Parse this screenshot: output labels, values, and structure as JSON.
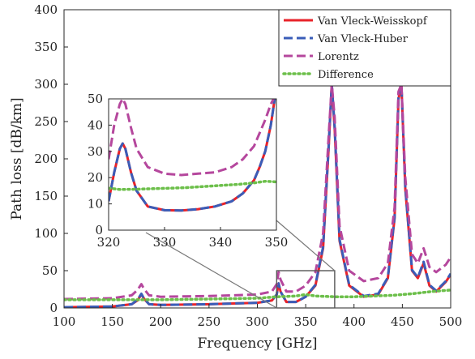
{
  "chart_data": {
    "type": "line",
    "xlabel": "Frequency [GHz]",
    "ylabel": "Path loss [dB/km]",
    "xlim": [
      100,
      500
    ],
    "ylim": [
      0,
      400
    ],
    "xticks": [
      100,
      150,
      200,
      250,
      300,
      350,
      400,
      450,
      500
    ],
    "yticks": [
      0,
      50,
      100,
      150,
      200,
      250,
      300,
      350,
      400
    ],
    "grid": false,
    "legend": {
      "position": "top-right",
      "entries": [
        "Van Vleck-Weisskopf",
        "Van Vleck-Huber",
        "Lorentz",
        "Difference"
      ]
    },
    "series": [
      {
        "name": "Van Vleck-Weisskopf",
        "color": "#e8232a",
        "style": "solid",
        "points": [
          [
            100,
            1
          ],
          [
            150,
            2
          ],
          [
            170,
            5
          ],
          [
            176,
            10
          ],
          [
            180,
            18
          ],
          [
            183,
            12
          ],
          [
            188,
            5
          ],
          [
            200,
            4
          ],
          [
            250,
            5
          ],
          [
            300,
            7
          ],
          [
            315,
            10
          ],
          [
            320,
            18
          ],
          [
            322,
            33
          ],
          [
            324,
            22
          ],
          [
            330,
            8
          ],
          [
            340,
            8
          ],
          [
            350,
            15
          ],
          [
            360,
            30
          ],
          [
            368,
            80
          ],
          [
            374,
            220
          ],
          [
            377,
            300
          ],
          [
            380,
            240
          ],
          [
            385,
            90
          ],
          [
            395,
            30
          ],
          [
            410,
            15
          ],
          [
            425,
            18
          ],
          [
            435,
            40
          ],
          [
            442,
            120
          ],
          [
            446,
            280
          ],
          [
            449,
            300
          ],
          [
            453,
            160
          ],
          [
            460,
            50
          ],
          [
            466,
            40
          ],
          [
            472,
            60
          ],
          [
            478,
            30
          ],
          [
            485,
            22
          ],
          [
            495,
            35
          ],
          [
            500,
            45
          ]
        ]
      },
      {
        "name": "Van Vleck-Huber",
        "color": "#3a5db8",
        "style": "dashed",
        "points": [
          [
            100,
            1
          ],
          [
            150,
            2
          ],
          [
            170,
            5
          ],
          [
            176,
            11
          ],
          [
            180,
            19
          ],
          [
            183,
            12
          ],
          [
            188,
            5
          ],
          [
            200,
            4
          ],
          [
            250,
            5
          ],
          [
            300,
            7
          ],
          [
            315,
            10
          ],
          [
            320,
            18
          ],
          [
            322,
            33
          ],
          [
            324,
            22
          ],
          [
            330,
            8
          ],
          [
            340,
            8
          ],
          [
            350,
            15
          ],
          [
            360,
            31
          ],
          [
            368,
            82
          ],
          [
            374,
            222
          ],
          [
            377,
            300
          ],
          [
            380,
            242
          ],
          [
            385,
            92
          ],
          [
            395,
            31
          ],
          [
            410,
            16
          ],
          [
            425,
            19
          ],
          [
            435,
            41
          ],
          [
            442,
            122
          ],
          [
            446,
            282
          ],
          [
            449,
            300
          ],
          [
            453,
            162
          ],
          [
            460,
            51
          ],
          [
            466,
            41
          ],
          [
            472,
            62
          ],
          [
            478,
            31
          ],
          [
            485,
            23
          ],
          [
            495,
            36
          ],
          [
            500,
            46
          ]
        ]
      },
      {
        "name": "Lorentz",
        "color": "#b5479d",
        "style": "dashed",
        "points": [
          [
            100,
            12
          ],
          [
            150,
            13
          ],
          [
            170,
            17
          ],
          [
            176,
            24
          ],
          [
            180,
            32
          ],
          [
            183,
            25
          ],
          [
            188,
            17
          ],
          [
            200,
            15
          ],
          [
            250,
            16
          ],
          [
            300,
            18
          ],
          [
            315,
            22
          ],
          [
            320,
            32
          ],
          [
            322,
            48
          ],
          [
            324,
            38
          ],
          [
            330,
            22
          ],
          [
            340,
            22
          ],
          [
            350,
            30
          ],
          [
            360,
            48
          ],
          [
            368,
            100
          ],
          [
            374,
            235
          ],
          [
            377,
            300
          ],
          [
            380,
            255
          ],
          [
            385,
            110
          ],
          [
            395,
            50
          ],
          [
            410,
            36
          ],
          [
            425,
            40
          ],
          [
            435,
            60
          ],
          [
            442,
            135
          ],
          [
            446,
            290
          ],
          [
            449,
            300
          ],
          [
            453,
            175
          ],
          [
            460,
            72
          ],
          [
            466,
            60
          ],
          [
            472,
            80
          ],
          [
            478,
            55
          ],
          [
            485,
            48
          ],
          [
            495,
            58
          ],
          [
            500,
            68
          ]
        ]
      },
      {
        "name": "Difference",
        "color": "#6cbf4a",
        "style": "dotted",
        "points": [
          [
            100,
            11
          ],
          [
            150,
            11
          ],
          [
            200,
            11
          ],
          [
            250,
            12
          ],
          [
            300,
            13
          ],
          [
            320,
            15
          ],
          [
            340,
            16
          ],
          [
            350,
            18
          ],
          [
            360,
            16
          ],
          [
            380,
            15
          ],
          [
            400,
            15
          ],
          [
            420,
            16
          ],
          [
            440,
            17
          ],
          [
            460,
            19
          ],
          [
            480,
            22
          ],
          [
            500,
            24
          ]
        ]
      }
    ],
    "inset": {
      "xlim": [
        320,
        350
      ],
      "ylim": [
        0,
        50
      ],
      "xticks": [
        320,
        330,
        340,
        350
      ],
      "yticks": [
        0,
        10,
        20,
        30,
        40,
        50
      ],
      "series": [
        {
          "name": "Van Vleck-Weisskopf",
          "color": "#e8232a",
          "style": "solid",
          "points": [
            [
              320,
              11
            ],
            [
              321,
              22
            ],
            [
              322,
              31
            ],
            [
              322.5,
              33
            ],
            [
              323,
              31
            ],
            [
              324,
              22
            ],
            [
              325,
              15
            ],
            [
              327,
              9
            ],
            [
              330,
              7.6
            ],
            [
              333,
              7.5
            ],
            [
              336,
              8
            ],
            [
              339,
              9
            ],
            [
              342,
              11
            ],
            [
              344,
              14
            ],
            [
              346,
              19
            ],
            [
              347,
              24
            ],
            [
              348,
              30
            ],
            [
              349,
              40
            ],
            [
              349.7,
              50
            ]
          ]
        },
        {
          "name": "Van Vleck-Huber",
          "color": "#3a5db8",
          "style": "dashed",
          "points": [
            [
              320,
              11
            ],
            [
              321,
              22
            ],
            [
              322,
              31
            ],
            [
              322.5,
              33
            ],
            [
              323,
              31
            ],
            [
              324,
              22
            ],
            [
              325,
              15
            ],
            [
              327,
              9
            ],
            [
              330,
              7.6
            ],
            [
              333,
              7.5
            ],
            [
              336,
              8
            ],
            [
              339,
              9
            ],
            [
              342,
              11
            ],
            [
              344,
              14
            ],
            [
              346,
              19
            ],
            [
              347,
              24
            ],
            [
              348,
              30
            ],
            [
              349,
              40
            ],
            [
              349.7,
              50
            ]
          ]
        },
        {
          "name": "Lorentz",
          "color": "#b5479d",
          "style": "dashed",
          "points": [
            [
              320,
              27
            ],
            [
              321,
              40
            ],
            [
              322,
              48
            ],
            [
              322.5,
              50
            ],
            [
              323,
              48
            ],
            [
              324,
              39
            ],
            [
              325,
              31
            ],
            [
              327,
              24
            ],
            [
              330,
              21.5
            ],
            [
              333,
              21
            ],
            [
              336,
              21.5
            ],
            [
              339,
              22
            ],
            [
              342,
              24
            ],
            [
              344,
              27
            ],
            [
              346,
              32
            ],
            [
              347,
              37
            ],
            [
              348,
              42
            ],
            [
              349,
              48
            ],
            [
              349.5,
              50
            ]
          ]
        },
        {
          "name": "Difference",
          "color": "#6cbf4a",
          "style": "dotted",
          "points": [
            [
              320,
              16
            ],
            [
              322,
              15.5
            ],
            [
              325,
              15.6
            ],
            [
              328,
              15.8
            ],
            [
              331,
              16
            ],
            [
              334,
              16.2
            ],
            [
              337,
              16.6
            ],
            [
              340,
              17
            ],
            [
              343,
              17.4
            ],
            [
              346,
              18
            ],
            [
              348,
              18.6
            ],
            [
              350,
              18.4
            ]
          ]
        }
      ]
    }
  }
}
